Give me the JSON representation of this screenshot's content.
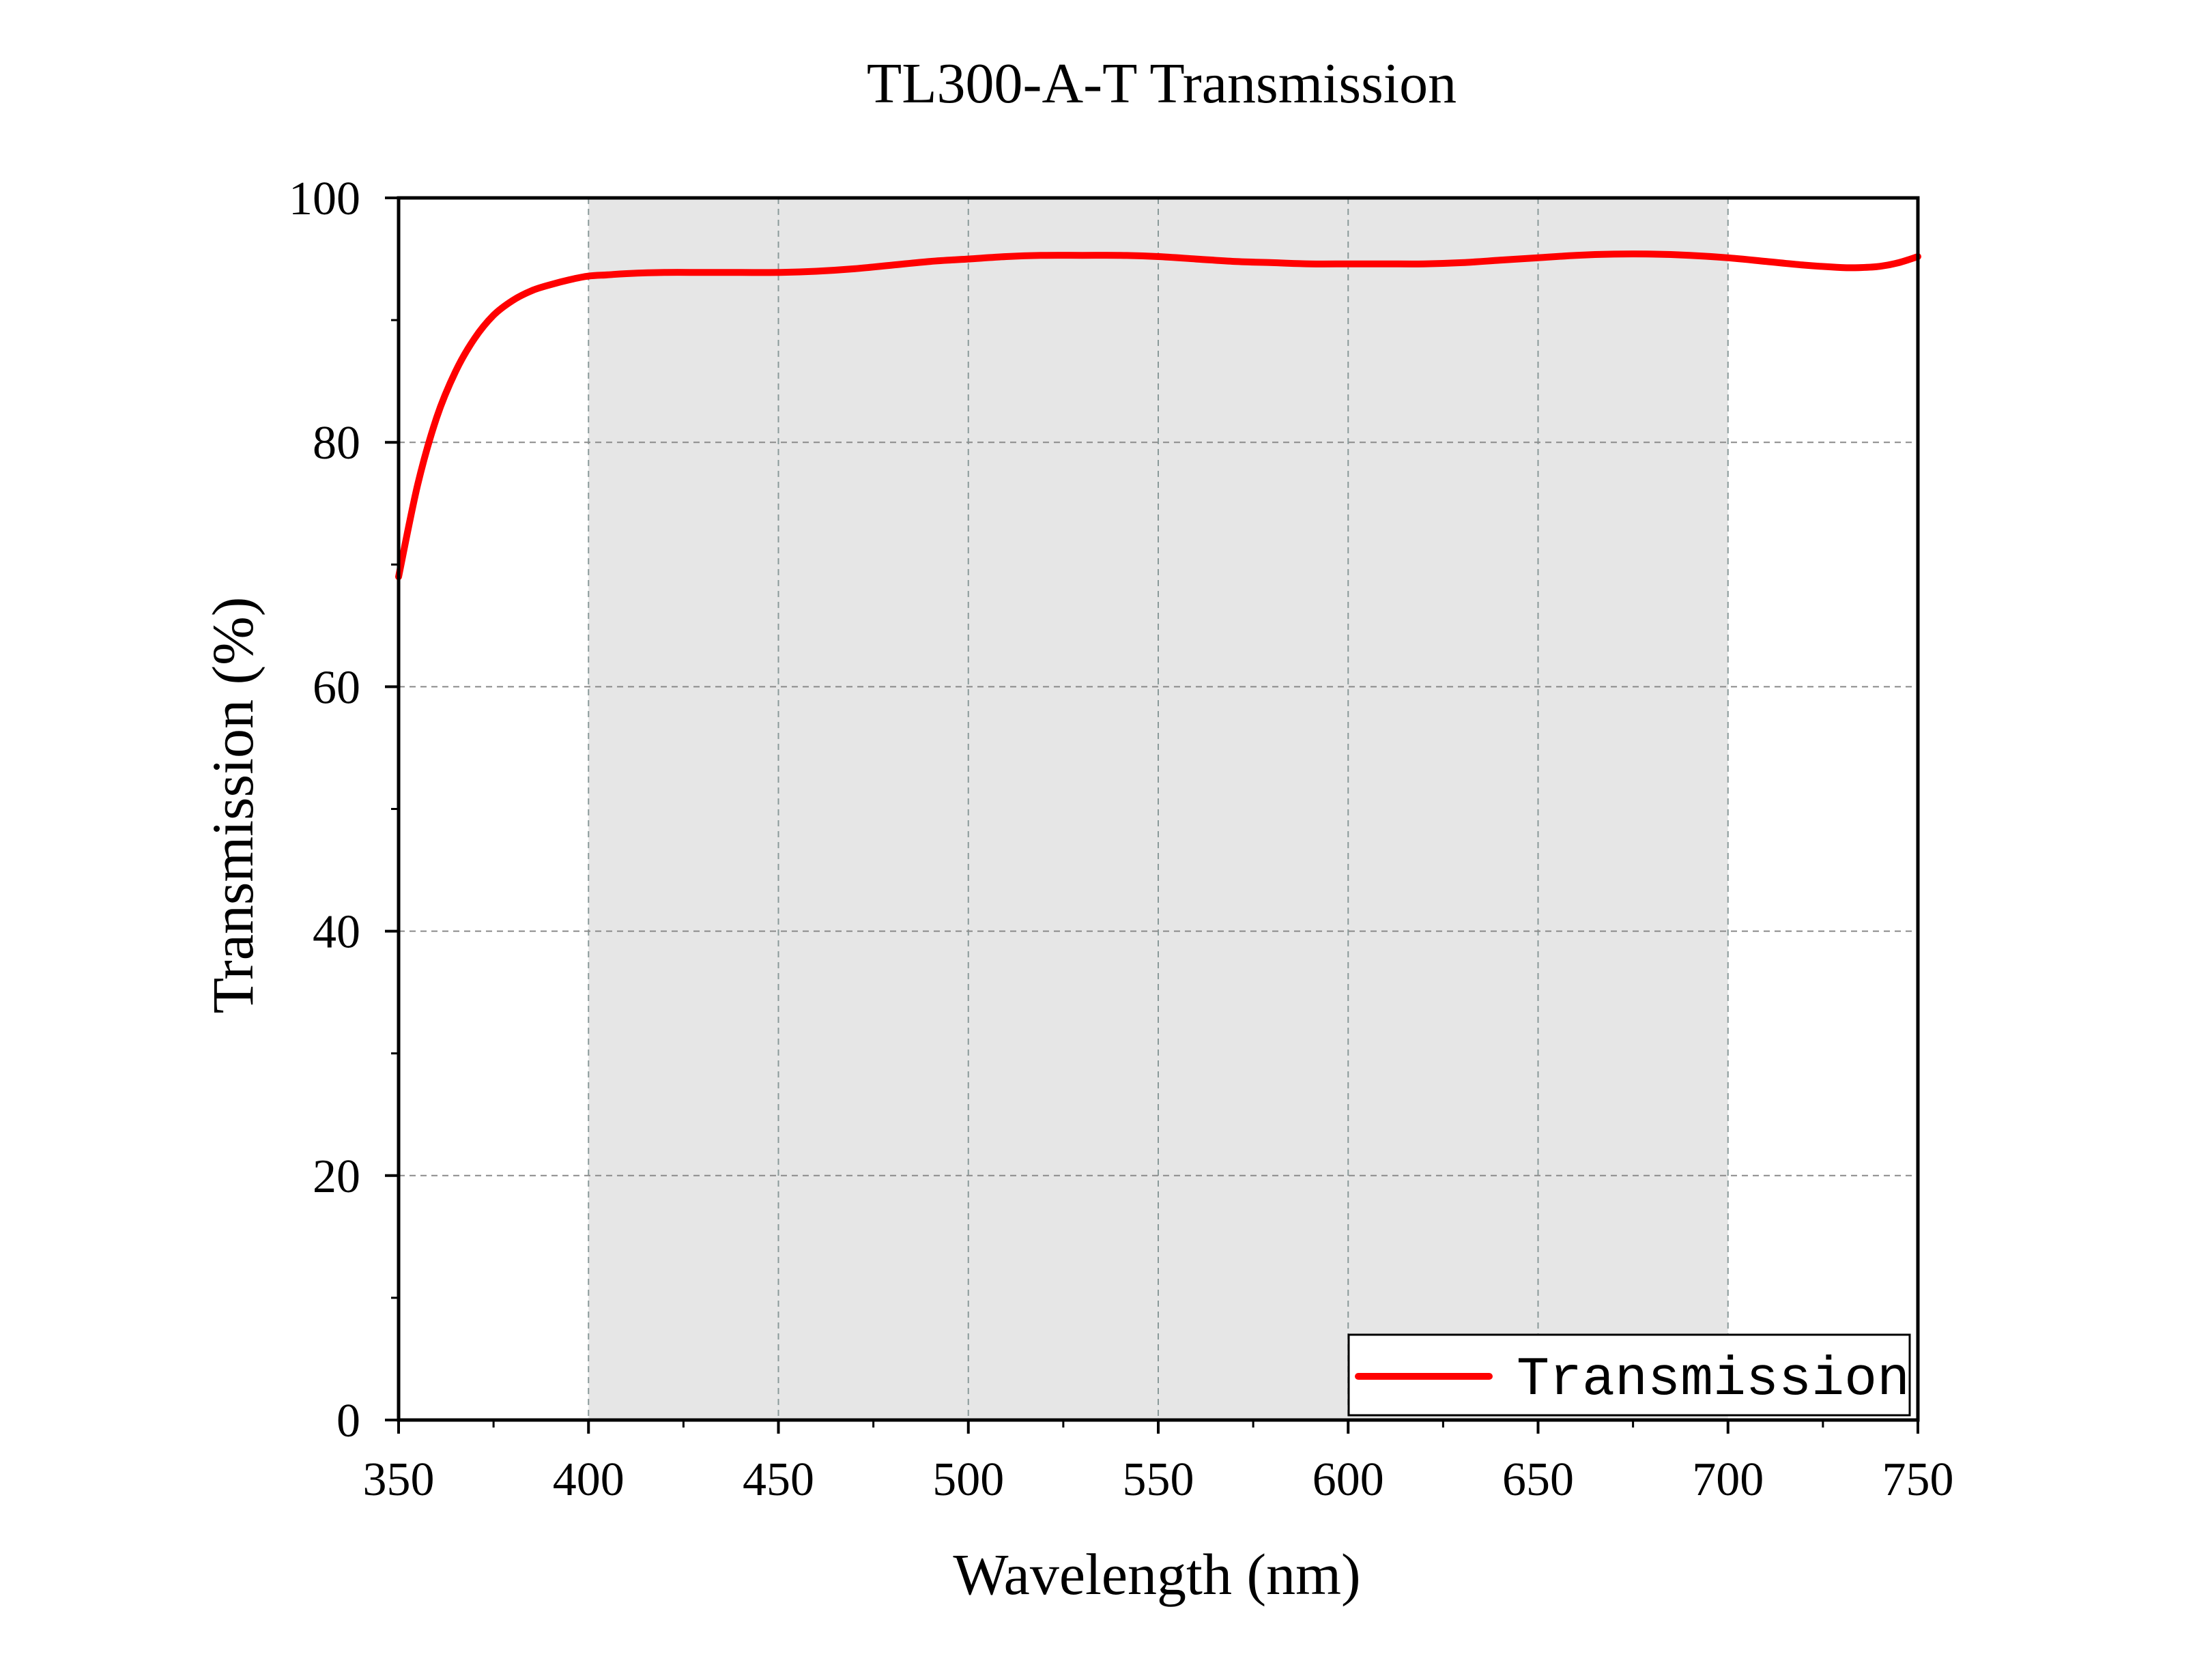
{
  "chart_data": {
    "type": "line",
    "title": "TL300-A-T Transmission",
    "xlabel": "Wavelength (nm)",
    "ylabel": "Transmission (%)",
    "xlim": [
      350,
      750
    ],
    "ylim": [
      0,
      100
    ],
    "xticks": [
      350,
      400,
      450,
      500,
      550,
      600,
      650,
      700,
      750
    ],
    "yticks": [
      0,
      20,
      40,
      60,
      80,
      100
    ],
    "grid": true,
    "legend_position": "bottom-right",
    "highlight_band": {
      "from": 400,
      "to": 700,
      "color": "#e6e6e6"
    },
    "series": [
      {
        "name": "Transmission",
        "color": "#ff0000",
        "x": [
          350,
          355,
          360,
          365,
          370,
          375,
          380,
          385,
          390,
          395,
          400,
          405,
          410,
          420,
          430,
          440,
          450,
          460,
          470,
          480,
          490,
          500,
          510,
          520,
          530,
          540,
          550,
          560,
          570,
          580,
          590,
          600,
          610,
          620,
          630,
          640,
          650,
          660,
          670,
          680,
          690,
          700,
          710,
          720,
          730,
          735,
          740,
          745,
          750
        ],
        "y": [
          69.0,
          76.5,
          82.0,
          85.8,
          88.5,
          90.4,
          91.6,
          92.4,
          92.9,
          93.3,
          93.6,
          93.7,
          93.8,
          93.9,
          93.9,
          93.9,
          93.9,
          94.0,
          94.2,
          94.5,
          94.8,
          95.0,
          95.2,
          95.3,
          95.3,
          95.3,
          95.2,
          95.0,
          94.8,
          94.7,
          94.6,
          94.6,
          94.6,
          94.6,
          94.7,
          94.9,
          95.1,
          95.3,
          95.4,
          95.4,
          95.3,
          95.1,
          94.8,
          94.5,
          94.3,
          94.3,
          94.4,
          94.7,
          95.2
        ]
      }
    ]
  }
}
